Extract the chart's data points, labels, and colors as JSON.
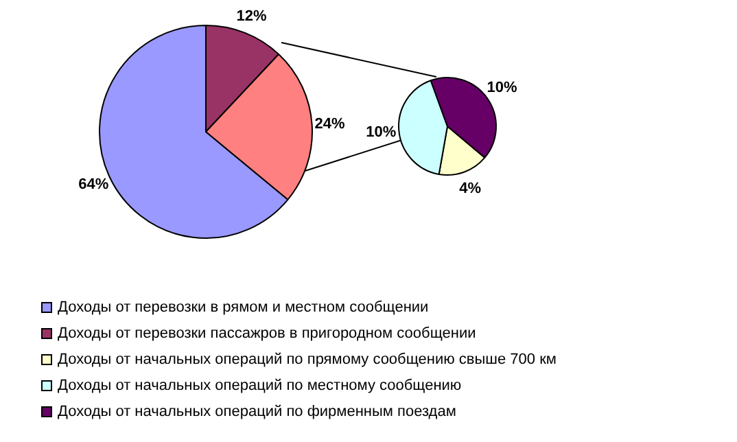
{
  "chart_data": [
    {
      "type": "pie",
      "categories": [
        "Доходы от перевозки в рямом и местном сообщении",
        "Доходы от перевозки пассажров в пригородном сообщении",
        null
      ],
      "values": [
        64,
        12,
        24
      ],
      "colors": [
        "#9999ff",
        "#993366",
        "#ff8080"
      ],
      "value_labels": [
        "64%",
        "12%",
        "24%"
      ],
      "legend": "bottom"
    },
    {
      "type": "pie",
      "categories": [
        "Доходы от начальных операций по прямому сообщению свыше 700 км",
        "Доходы от начальных операций по местному сообщению",
        "Доходы от начальных операций по фирменным поездам"
      ],
      "values": [
        4,
        10,
        10
      ],
      "colors": [
        "#ffffcc",
        "#ccffff",
        "#660066"
      ],
      "value_labels": [
        "4%",
        "10%",
        "10%"
      ],
      "legend": "bottom"
    }
  ]
}
